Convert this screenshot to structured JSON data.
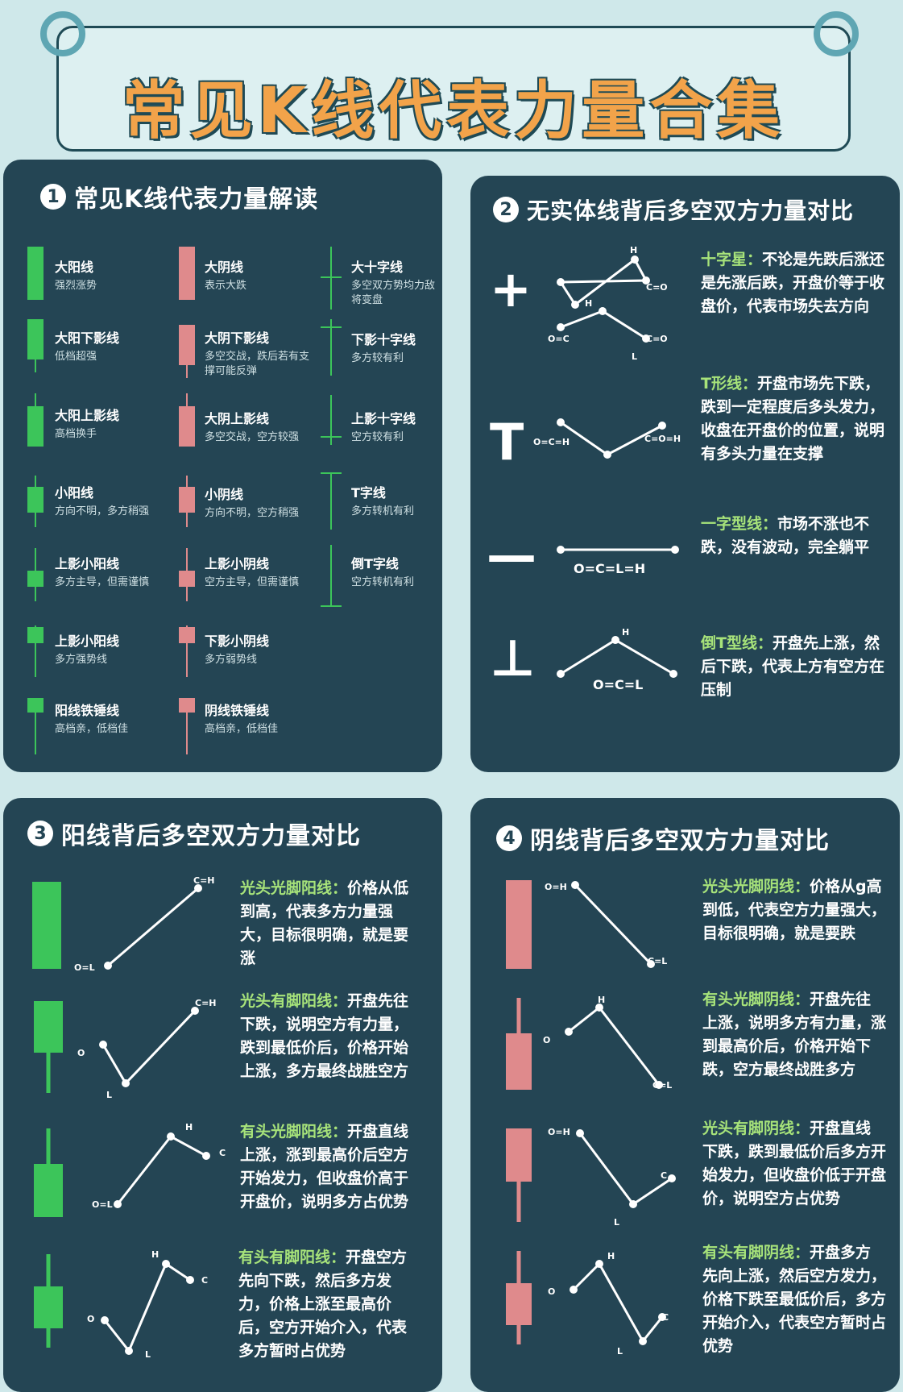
{
  "title": "常见K线代表力量合集",
  "colors": {
    "bull": "#3cc55a",
    "bear": "#df8a8c",
    "doji": "#3cc55a",
    "highlight": "#a7e37a",
    "panel": "#244554",
    "bg": "#cfe8ea"
  },
  "panel1": {
    "num": "1",
    "title": "常见K线代表力量解读",
    "items": [
      {
        "name": "大阳线",
        "desc": "强烈涨势"
      },
      {
        "name": "大阴线",
        "desc": "表示大跌"
      },
      {
        "name": "大十字线",
        "desc": "多空双方势均力敌将变盘"
      },
      {
        "name": "大阳下影线",
        "desc": "低档超强"
      },
      {
        "name": "大阴下影线",
        "desc": "多空交战，跌后若有支撑可能反弹"
      },
      {
        "name": "下影十字线",
        "desc": "多方较有利"
      },
      {
        "name": "大阳上影线",
        "desc": "高档换手"
      },
      {
        "name": "大阴上影线",
        "desc": "多空交战，空方较强"
      },
      {
        "name": "上影十字线",
        "desc": "空方较有利"
      },
      {
        "name": "小阳线",
        "desc": "方向不明，多方稍强"
      },
      {
        "name": "小阴线",
        "desc": "方向不明，空方稍强"
      },
      {
        "name": "T字线",
        "desc": "多方转机有利"
      },
      {
        "name": "上影小阳线",
        "desc": "多方主导，但需谨慎"
      },
      {
        "name": "上影小阴线",
        "desc": "空方主导，但需谨慎"
      },
      {
        "name": "倒T字线",
        "desc": "空方转机有利"
      },
      {
        "name": "上影小阳线",
        "desc": "多方强势线"
      },
      {
        "name": "下影小阴线",
        "desc": "多方弱势线"
      },
      {
        "name": "阳线铁锤线",
        "desc": "高档亲，低档佳"
      },
      {
        "name": "阴线铁锤线",
        "desc": "高档亲，低档佳"
      }
    ]
  },
  "panel2": {
    "num": "2",
    "title": "无实体线背后多空双方力量对比",
    "rows": [
      {
        "symbol": "+",
        "label": "十字星：",
        "text": "不论是先跌后涨还是先涨后跌，开盘价等于收盘价，代表市场失去方向"
      },
      {
        "symbol": "T",
        "label": "T形线：",
        "text": "开盘市场先下跌，跌到一定程度后多头发力，收盘在开盘价的位置，说明有多头力量在支撑"
      },
      {
        "symbol": "—",
        "label": "一字型线：",
        "text": "市场不涨也不跌，没有波动，完全躺平"
      },
      {
        "symbol": "⊥",
        "label": "倒T型线：",
        "text": "开盘先上涨，然后下跌，代表上方有空方在压制"
      }
    ],
    "points": {
      "h": "H",
      "l": "L",
      "c_eq_o": "C=O",
      "o_eq_c": "O=C",
      "o_c_h": "O=C=H",
      "c_o_h": "C=O=H",
      "ocl_h": "O=C=L=H",
      "ocl": "O=C=L"
    }
  },
  "panel3": {
    "num": "3",
    "title": "阳线背后多空双方力量对比",
    "rows": [
      {
        "label": "光头光脚阳线：",
        "text": "价格从低到高，代表多方力量强大，目标很明确，就是要涨"
      },
      {
        "label": "光头有脚阳线：",
        "text": "开盘先往下跌，说明空方有力量，跌到最低价后，价格开始上涨，多方最终战胜空方"
      },
      {
        "label": "有头光脚阳线：",
        "text": "开盘直线上涨，涨到最高价后空方开始发力，但收盘价高于开盘价，说明多方占优势"
      },
      {
        "label": "有头有脚阳线：",
        "text": "开盘空方先向下跌，然后多方发力，价格上涨至最高价后，空方开始介入，代表多方暂时占优势"
      }
    ],
    "points": {
      "c_h": "C=H",
      "o_l": "O=L",
      "o": "O",
      "l": "L",
      "h": "H",
      "c": "C"
    }
  },
  "panel4": {
    "num": "4",
    "title": "阴线背后多空双方力量对比",
    "rows": [
      {
        "label": "光头光脚阴线：",
        "text": "价格从g高到低，代表空方力量强大，目标很明确，就是要跌"
      },
      {
        "label": "有头光脚阴线：",
        "text": "开盘先往上涨，说明多方有力量，涨到最高价后，价格开始下跌，空方最终战胜多方"
      },
      {
        "label": "光头有脚阴线：",
        "text": "开盘直线下跌，跌到最低价后多方开始发力，但收盘价低于开盘价，说明空方占优势"
      },
      {
        "label": "有头有脚阴线：",
        "text": "开盘多方先向上涨，然后空方发力，价格下跌至最低价后，多方开始介入，代表空方暂时占优势"
      }
    ],
    "points": {
      "o_h": "O=H",
      "c_l": "C=L",
      "o": "O",
      "h": "H",
      "l": "L",
      "c": "C"
    }
  }
}
